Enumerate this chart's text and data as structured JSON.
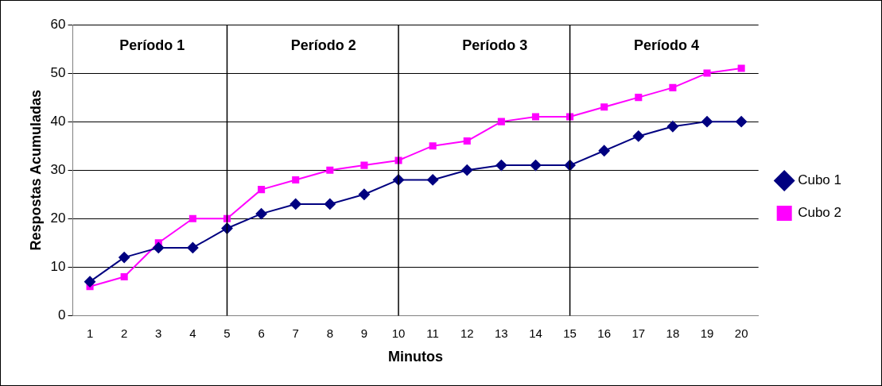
{
  "chart_data": {
    "type": "line",
    "xlabel": "Minutos",
    "ylabel": "Respostas Acumuladas",
    "categories": [
      "1",
      "2",
      "3",
      "4",
      "5",
      "6",
      "7",
      "8",
      "9",
      "10",
      "11",
      "12",
      "13",
      "14",
      "15",
      "16",
      "17",
      "18",
      "19",
      "20"
    ],
    "series": [
      {
        "name": "Cubo 1",
        "color": "#000080",
        "marker": "diamond",
        "values": [
          7,
          12,
          14,
          14,
          18,
          21,
          23,
          23,
          25,
          28,
          28,
          30,
          31,
          31,
          31,
          34,
          37,
          39,
          40,
          40
        ]
      },
      {
        "name": "Cubo 2",
        "color": "#ff00ff",
        "marker": "square",
        "values": [
          6,
          8,
          15,
          20,
          20,
          26,
          28,
          30,
          31,
          32,
          35,
          36,
          40,
          41,
          41,
          43,
          45,
          47,
          50,
          51
        ]
      }
    ],
    "ylim": [
      0,
      60
    ],
    "yticks": [
      0,
      10,
      20,
      30,
      40,
      50,
      60
    ],
    "grid": "y",
    "legend": "right",
    "ref_lines": [
      {
        "axis": "x",
        "value": "5",
        "color": "#000000"
      },
      {
        "axis": "x",
        "value": "10",
        "color": "#000000"
      },
      {
        "axis": "x",
        "value": "15",
        "color": "#000000"
      }
    ],
    "annotations": [
      "Período 1",
      "Período 2",
      "Período 3",
      "Período 4"
    ]
  }
}
